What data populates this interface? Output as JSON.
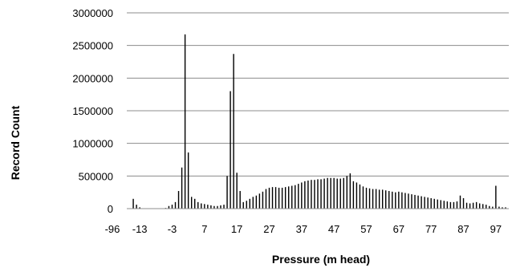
{
  "chart_data": {
    "type": "bar",
    "xlabel": "Pressure (m head)",
    "ylabel": "Record Count",
    "ylim": [
      0,
      3000000
    ],
    "yticks": [
      0,
      500000,
      1000000,
      1500000,
      2000000,
      2500000,
      3000000
    ],
    "ytick_labels": [
      "0",
      "500000",
      "1000000",
      "1500000",
      "2000000",
      "2500000",
      "3000000"
    ],
    "xtick_labels": [
      "-96",
      "-13",
      "-3",
      "7",
      "17",
      "27",
      "37",
      "47",
      "57",
      "67",
      "77",
      "87",
      "97"
    ],
    "grid": "horizontal",
    "legend": "none",
    "bar_color": "#000000",
    "series": [
      {
        "values_by_pressure": [
          {
            "x": -15,
            "y": 150000
          },
          {
            "x": -14,
            "y": 60000
          },
          {
            "x": -13,
            "y": 20000
          },
          {
            "x": -5,
            "y": 10000
          },
          {
            "x": -4,
            "y": 40000
          },
          {
            "x": -3,
            "y": 60000
          },
          {
            "x": -2,
            "y": 100000
          },
          {
            "x": -1,
            "y": 270000
          },
          {
            "x": 0,
            "y": 630000
          },
          {
            "x": 1,
            "y": 2670000
          },
          {
            "x": 2,
            "y": 860000
          },
          {
            "x": 3,
            "y": 180000
          },
          {
            "x": 4,
            "y": 150000
          },
          {
            "x": 5,
            "y": 100000
          },
          {
            "x": 6,
            "y": 80000
          },
          {
            "x": 7,
            "y": 70000
          },
          {
            "x": 8,
            "y": 60000
          },
          {
            "x": 9,
            "y": 50000
          },
          {
            "x": 10,
            "y": 40000
          },
          {
            "x": 11,
            "y": 40000
          },
          {
            "x": 12,
            "y": 50000
          },
          {
            "x": 13,
            "y": 60000
          },
          {
            "x": 14,
            "y": 500000
          },
          {
            "x": 15,
            "y": 1800000
          },
          {
            "x": 16,
            "y": 2370000
          },
          {
            "x": 17,
            "y": 550000
          },
          {
            "x": 18,
            "y": 270000
          },
          {
            "x": 19,
            "y": 100000
          },
          {
            "x": 20,
            "y": 120000
          },
          {
            "x": 21,
            "y": 150000
          },
          {
            "x": 22,
            "y": 180000
          },
          {
            "x": 23,
            "y": 200000
          },
          {
            "x": 24,
            "y": 230000
          },
          {
            "x": 25,
            "y": 260000
          },
          {
            "x": 26,
            "y": 300000
          },
          {
            "x": 27,
            "y": 320000
          },
          {
            "x": 28,
            "y": 330000
          },
          {
            "x": 29,
            "y": 330000
          },
          {
            "x": 30,
            "y": 320000
          },
          {
            "x": 31,
            "y": 320000
          },
          {
            "x": 32,
            "y": 330000
          },
          {
            "x": 33,
            "y": 340000
          },
          {
            "x": 34,
            "y": 350000
          },
          {
            "x": 35,
            "y": 360000
          },
          {
            "x": 36,
            "y": 380000
          },
          {
            "x": 37,
            "y": 400000
          },
          {
            "x": 38,
            "y": 420000
          },
          {
            "x": 39,
            "y": 430000
          },
          {
            "x": 40,
            "y": 440000
          },
          {
            "x": 41,
            "y": 440000
          },
          {
            "x": 42,
            "y": 450000
          },
          {
            "x": 43,
            "y": 450000
          },
          {
            "x": 44,
            "y": 460000
          },
          {
            "x": 45,
            "y": 470000
          },
          {
            "x": 46,
            "y": 470000
          },
          {
            "x": 47,
            "y": 470000
          },
          {
            "x": 48,
            "y": 460000
          },
          {
            "x": 49,
            "y": 460000
          },
          {
            "x": 50,
            "y": 470000
          },
          {
            "x": 51,
            "y": 500000
          },
          {
            "x": 52,
            "y": 540000
          },
          {
            "x": 53,
            "y": 420000
          },
          {
            "x": 54,
            "y": 400000
          },
          {
            "x": 55,
            "y": 370000
          },
          {
            "x": 56,
            "y": 340000
          },
          {
            "x": 57,
            "y": 320000
          },
          {
            "x": 58,
            "y": 310000
          },
          {
            "x": 59,
            "y": 300000
          },
          {
            "x": 60,
            "y": 300000
          },
          {
            "x": 61,
            "y": 290000
          },
          {
            "x": 62,
            "y": 290000
          },
          {
            "x": 63,
            "y": 280000
          },
          {
            "x": 64,
            "y": 270000
          },
          {
            "x": 65,
            "y": 260000
          },
          {
            "x": 66,
            "y": 250000
          },
          {
            "x": 67,
            "y": 260000
          },
          {
            "x": 68,
            "y": 250000
          },
          {
            "x": 69,
            "y": 240000
          },
          {
            "x": 70,
            "y": 230000
          },
          {
            "x": 71,
            "y": 220000
          },
          {
            "x": 72,
            "y": 210000
          },
          {
            "x": 73,
            "y": 200000
          },
          {
            "x": 74,
            "y": 190000
          },
          {
            "x": 75,
            "y": 180000
          },
          {
            "x": 76,
            "y": 170000
          },
          {
            "x": 77,
            "y": 160000
          },
          {
            "x": 78,
            "y": 150000
          },
          {
            "x": 79,
            "y": 140000
          },
          {
            "x": 80,
            "y": 130000
          },
          {
            "x": 81,
            "y": 120000
          },
          {
            "x": 82,
            "y": 110000
          },
          {
            "x": 83,
            "y": 100000
          },
          {
            "x": 84,
            "y": 100000
          },
          {
            "x": 85,
            "y": 110000
          },
          {
            "x": 86,
            "y": 200000
          },
          {
            "x": 87,
            "y": 160000
          },
          {
            "x": 88,
            "y": 90000
          },
          {
            "x": 89,
            "y": 80000
          },
          {
            "x": 90,
            "y": 90000
          },
          {
            "x": 91,
            "y": 100000
          },
          {
            "x": 92,
            "y": 80000
          },
          {
            "x": 93,
            "y": 70000
          },
          {
            "x": 94,
            "y": 60000
          },
          {
            "x": 95,
            "y": 40000
          },
          {
            "x": 96,
            "y": 30000
          },
          {
            "x": 97,
            "y": 350000
          },
          {
            "x": 98,
            "y": 30000
          },
          {
            "x": 99,
            "y": 20000
          },
          {
            "x": 100,
            "y": 20000
          }
        ]
      }
    ]
  }
}
